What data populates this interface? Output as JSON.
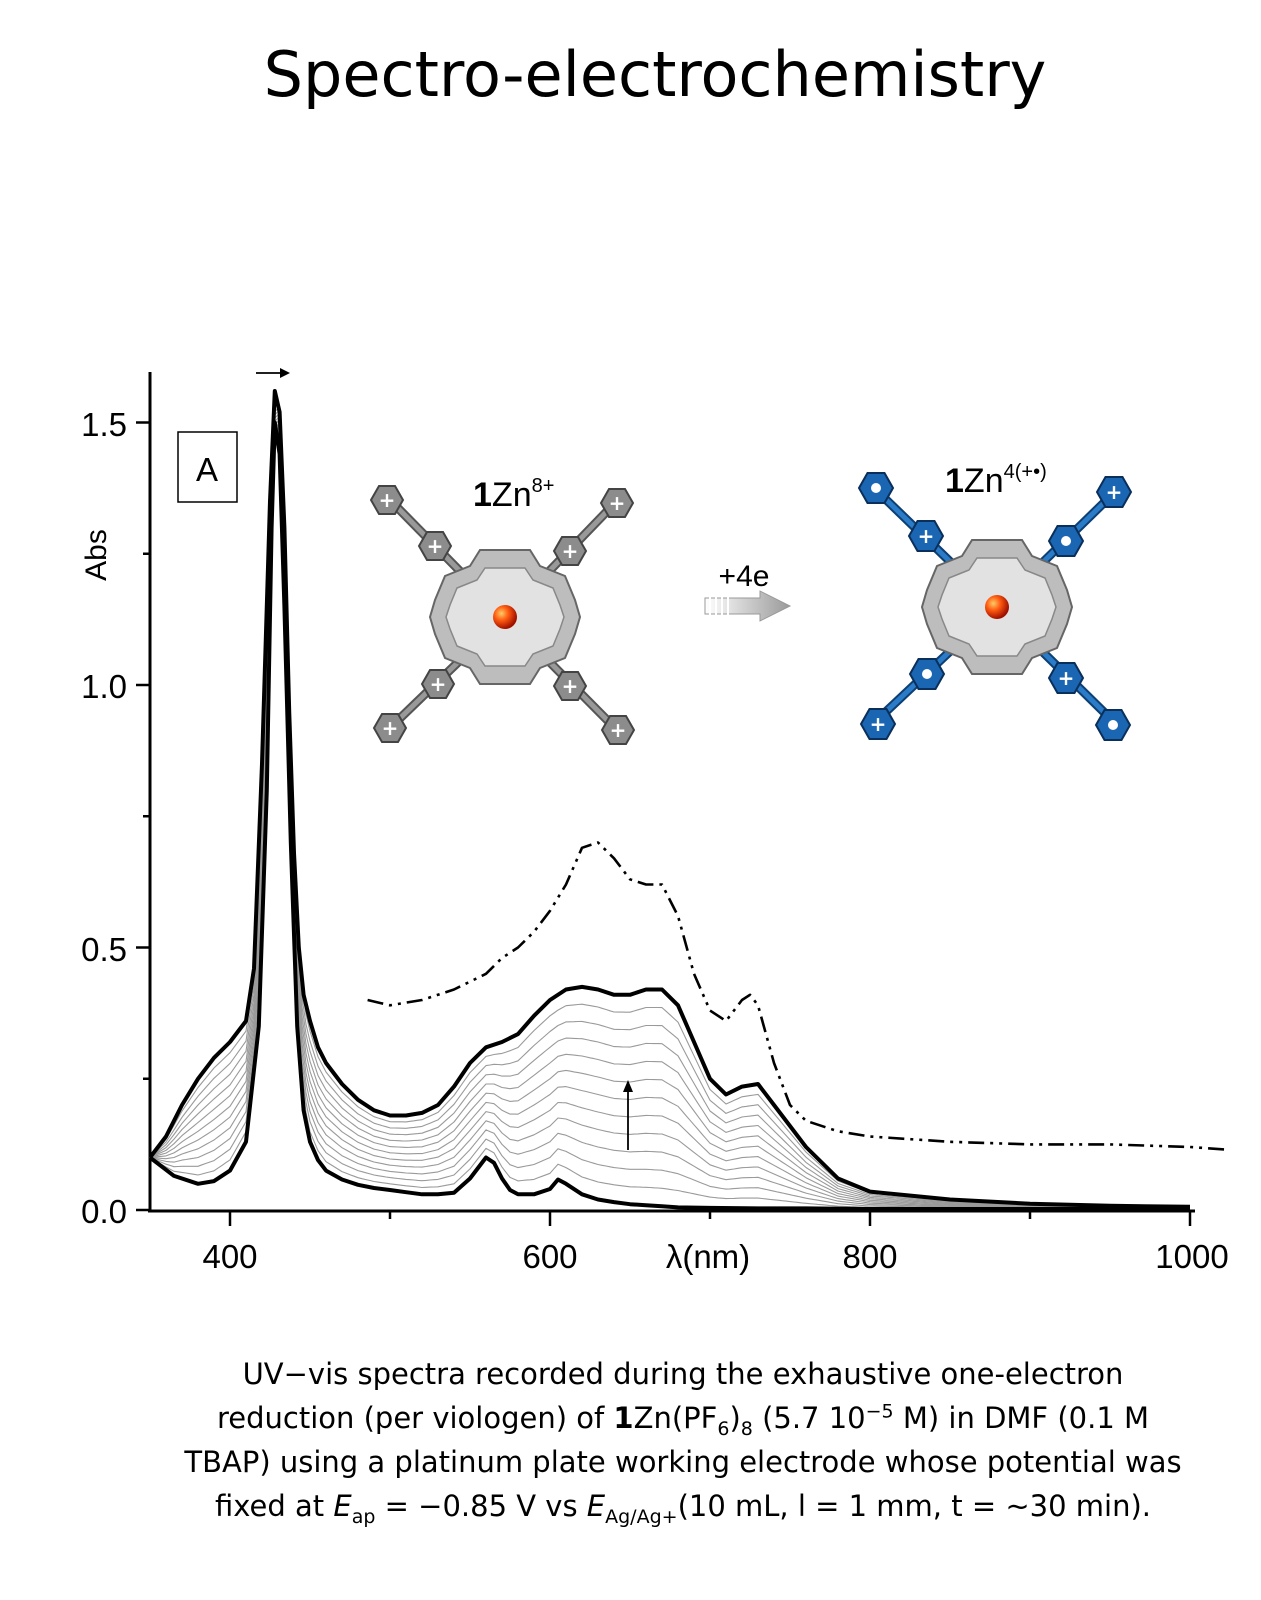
{
  "title": "Spectro-electrochemistry",
  "chart_data": {
    "type": "line",
    "panel_label": "A",
    "xlabel": "λ(nm)",
    "ylabel": "Abs",
    "xlim": [
      350,
      1000
    ],
    "ylim": [
      0,
      1.6
    ],
    "x_ticks": [
      "400",
      "600",
      "800",
      "1000"
    ],
    "y_ticks": [
      "0.0",
      "0.5",
      "1.0",
      "1.5"
    ],
    "series": [
      {
        "style": "solid-bold",
        "x": [
          350,
          365,
          380,
          390,
          400,
          410,
          418,
          423,
          426,
          428,
          431,
          434,
          438,
          442,
          446,
          450,
          455,
          460,
          470,
          480,
          490,
          500,
          510,
          520,
          530,
          540,
          550,
          560,
          565,
          570,
          575,
          580,
          590,
          600,
          605,
          610,
          620,
          630,
          640,
          650,
          660,
          670,
          680,
          700,
          730,
          760,
          800,
          900,
          1000
        ],
        "y": [
          0.1,
          0.065,
          0.05,
          0.055,
          0.075,
          0.13,
          0.35,
          0.8,
          1.3,
          1.5,
          1.44,
          1.15,
          0.7,
          0.35,
          0.19,
          0.13,
          0.095,
          0.075,
          0.058,
          0.048,
          0.042,
          0.038,
          0.034,
          0.03,
          0.03,
          0.033,
          0.06,
          0.1,
          0.09,
          0.06,
          0.038,
          0.03,
          0.03,
          0.04,
          0.058,
          0.05,
          0.03,
          0.02,
          0.015,
          0.011,
          0.009,
          0.007,
          0.005,
          0.004,
          0.003,
          0.003,
          0.002,
          0.002,
          0.002
        ]
      },
      {
        "style": "solid-bold",
        "x": [
          350,
          360,
          370,
          380,
          390,
          400,
          410,
          415,
          420,
          425,
          428,
          431,
          434,
          437,
          440,
          443,
          446,
          450,
          455,
          460,
          470,
          480,
          490,
          500,
          510,
          520,
          530,
          540,
          550,
          560,
          570,
          580,
          590,
          600,
          610,
          620,
          630,
          640,
          650,
          660,
          670,
          680,
          690,
          700,
          710,
          720,
          730,
          740,
          760,
          780,
          800,
          850,
          900,
          950,
          1000
        ],
        "y": [
          0.1,
          0.14,
          0.2,
          0.25,
          0.29,
          0.32,
          0.36,
          0.46,
          0.85,
          1.35,
          1.56,
          1.52,
          1.3,
          0.95,
          0.68,
          0.5,
          0.41,
          0.36,
          0.31,
          0.28,
          0.24,
          0.21,
          0.19,
          0.18,
          0.18,
          0.185,
          0.2,
          0.235,
          0.28,
          0.31,
          0.32,
          0.335,
          0.37,
          0.4,
          0.42,
          0.425,
          0.42,
          0.41,
          0.41,
          0.42,
          0.42,
          0.39,
          0.32,
          0.25,
          0.22,
          0.235,
          0.24,
          0.2,
          0.12,
          0.06,
          0.035,
          0.02,
          0.012,
          0.008,
          0.006
        ]
      },
      {
        "style": "dash-dot-dot",
        "x": [
          486,
          500,
          520,
          540,
          560,
          570,
          580,
          590,
          600,
          610,
          620,
          630,
          640,
          650,
          660,
          670,
          680,
          690,
          700,
          710,
          720,
          725,
          730,
          740,
          750,
          760,
          780,
          800,
          850,
          900,
          950,
          1000,
          1023
        ],
        "y": [
          0.4,
          0.39,
          0.4,
          0.42,
          0.45,
          0.48,
          0.5,
          0.53,
          0.57,
          0.62,
          0.69,
          0.7,
          0.67,
          0.63,
          0.62,
          0.62,
          0.56,
          0.45,
          0.38,
          0.36,
          0.4,
          0.41,
          0.39,
          0.28,
          0.2,
          0.17,
          0.15,
          0.14,
          0.13,
          0.125,
          0.125,
          0.12,
          0.115
        ]
      }
    ],
    "annotations": [
      "+4e"
    ],
    "schemes": [
      {
        "label": "1",
        "rest": "Zn",
        "superscript": "8+"
      },
      {
        "label": "1",
        "rest": "Zn",
        "superscript": "4(+•)"
      }
    ],
    "colors": {
      "axis": "#000000",
      "intermediate": "#9a9a9a",
      "grey_viologen": "#8c8c8c",
      "blue_viologen": "#1a66b3",
      "zinc": "#e03010"
    }
  },
  "caption": {
    "p1": "UV−vis spectra recorded during the exhaustive one-electron",
    "p2a": "reduction (per viologen) of ",
    "p2b": "1",
    "p2c": "Zn(PF",
    "p2d": "6",
    "p2e": ")",
    "p2f": "8",
    "p2g": " (5.7 10",
    "p2h": "−5",
    "p2i": " M) in DMF (0.1 M",
    "p3": "TBAP) using a platinum plate working electrode whose potential was",
    "p4a": "fixed at ",
    "p4b": "E",
    "p4c": "ap",
    "p4d": " = −0.85 V vs ",
    "p4e": "E",
    "p4f": "Ag/Ag+",
    "p4g": "(10 mL, l = 1 mm, t = ∼30 min)."
  }
}
